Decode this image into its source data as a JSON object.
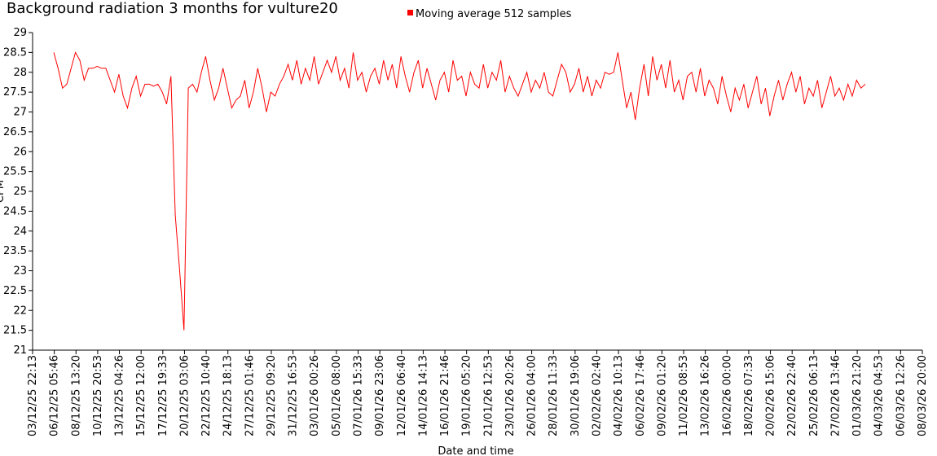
{
  "chart_data": {
    "type": "line",
    "title": "Background radiation 3 months for vulture20",
    "xlabel": "Date and time",
    "ylabel": "CPM",
    "ylim": [
      21,
      29
    ],
    "y_ticks": [
      "21",
      "21.5",
      "22",
      "22.5",
      "23",
      "23.5",
      "24",
      "24.5",
      "25",
      "25.5",
      "26",
      "26.5",
      "27",
      "27.5",
      "28",
      "28.5",
      "29"
    ],
    "x_ticks": [
      "03/12/25 22:13",
      "06/12/25 05:46",
      "08/12/25 13:20",
      "10/12/25 20:53",
      "13/12/25 04:26",
      "15/12/25 12:00",
      "17/12/25 19:33",
      "20/12/25 03:06",
      "22/12/25 10:40",
      "24/12/25 18:13",
      "27/12/25 01:46",
      "29/12/25 09:20",
      "31/12/25 16:53",
      "03/01/26 00:26",
      "05/01/26 08:00",
      "07/01/26 15:33",
      "09/01/26 23:06",
      "12/01/26 06:40",
      "14/01/26 14:13",
      "16/01/26 21:46",
      "19/01/26 05:20",
      "21/01/26 12:53",
      "23/01/26 20:26",
      "26/01/26 04:00",
      "28/01/26 11:33",
      "30/01/26 19:06",
      "02/02/26 02:40",
      "04/02/26 10:13",
      "06/02/26 17:46",
      "09/02/26 01:20",
      "11/02/26 08:53",
      "13/02/26 16:26",
      "16/02/26 00:00",
      "18/02/26 07:33",
      "20/02/26 15:06",
      "22/02/26 22:40",
      "25/02/26 06:13",
      "27/02/26 13:46",
      "01/03/26 21:20",
      "04/03/26 04:53",
      "06/03/26 12:26",
      "08/03/26 20:00"
    ],
    "grid": false,
    "legend": "top-center",
    "series": [
      {
        "name": "Moving average 512 samples",
        "color": "#ff0000",
        "x_range": [
          "03/12/25 22:13",
          "08/03/26 20:00"
        ],
        "values": [
          28.5,
          28.1,
          27.6,
          27.7,
          28.1,
          28.5,
          28.3,
          27.8,
          28.1,
          28.1,
          28.15,
          28.1,
          28.1,
          27.8,
          27.5,
          27.95,
          27.4,
          27.1,
          27.6,
          27.9,
          27.4,
          27.7,
          27.7,
          27.65,
          27.7,
          27.5,
          27.2,
          27.9,
          24.4,
          23.0,
          21.5,
          27.6,
          27.7,
          27.5,
          28.0,
          28.4,
          27.8,
          27.3,
          27.6,
          28.1,
          27.6,
          27.1,
          27.3,
          27.4,
          27.8,
          27.1,
          27.5,
          28.1,
          27.6,
          27.0,
          27.5,
          27.4,
          27.7,
          27.9,
          28.2,
          27.8,
          28.3,
          27.7,
          28.1,
          27.8,
          28.4,
          27.7,
          28.0,
          28.3,
          28.0,
          28.4,
          27.8,
          28.1,
          27.6,
          28.5,
          27.8,
          28.0,
          27.5,
          27.9,
          28.1,
          27.7,
          28.3,
          27.8,
          28.2,
          27.6,
          28.4,
          27.9,
          27.5,
          28.0,
          28.3,
          27.6,
          28.1,
          27.7,
          27.3,
          27.8,
          28.0,
          27.5,
          28.3,
          27.8,
          27.9,
          27.4,
          28.0,
          27.7,
          27.6,
          28.2,
          27.6,
          28.0,
          27.8,
          28.3,
          27.5,
          27.9,
          27.6,
          27.4,
          27.7,
          28.0,
          27.5,
          27.8,
          27.6,
          28.0,
          27.5,
          27.4,
          27.8,
          28.2,
          28.0,
          27.5,
          27.7,
          28.1,
          27.5,
          27.9,
          27.4,
          27.8,
          27.6,
          28.0,
          27.95,
          28.0,
          28.5,
          27.8,
          27.1,
          27.5,
          26.8,
          27.6,
          28.2,
          27.4,
          28.4,
          27.8,
          28.2,
          27.6,
          28.3,
          27.5,
          27.8,
          27.3,
          27.9,
          28.0,
          27.5,
          28.1,
          27.4,
          27.8,
          27.6,
          27.2,
          27.9,
          27.4,
          27.0,
          27.6,
          27.3,
          27.7,
          27.1,
          27.5,
          27.9,
          27.2,
          27.6,
          26.9,
          27.4,
          27.8,
          27.3,
          27.7,
          28.0,
          27.5,
          27.9,
          27.2,
          27.6,
          27.4,
          27.8,
          27.1,
          27.5,
          27.9,
          27.4,
          27.6,
          27.3,
          27.7,
          27.4,
          27.8,
          27.6,
          27.7
        ]
      }
    ]
  }
}
